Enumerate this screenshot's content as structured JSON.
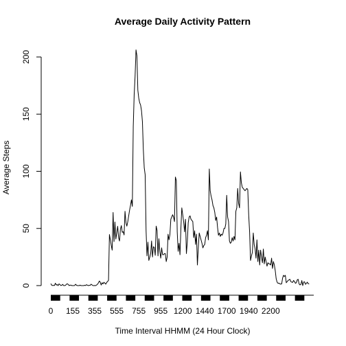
{
  "chart_data": {
    "type": "line",
    "title": "Average Daily Activity Pattern",
    "xlabel": "Time Interval HHMM (24 Hour Clock)",
    "ylabel": "Average Steps",
    "x_tick_labels": [
      "0",
      "155",
      "355",
      "555",
      "755",
      "955",
      "1200",
      "1440",
      "1700",
      "1940",
      "2200"
    ],
    "y_ticks": [
      0,
      50,
      100,
      150,
      200
    ],
    "ylim": [
      0,
      206
    ],
    "x_index_range": [
      0,
      287
    ],
    "legend": "none",
    "grid": false,
    "x_axis_style": "dense ticks rendered as alternating black/white bar",
    "series": [
      {
        "values": [
          1.7,
          0.3,
          0.1,
          0.2,
          0.1,
          2.1,
          0.5,
          0.9,
          0.0,
          1.5,
          0.8,
          0.1,
          0.3,
          1.1,
          0.0,
          0.0,
          0.2,
          1.1,
          1.6,
          1.0,
          0.0,
          0.4,
          0.4,
          0.0,
          0.0,
          0.0,
          0.1,
          1.2,
          0.3,
          0.0,
          0.0,
          0.0,
          0.4,
          0.0,
          0.0,
          0.0,
          0.0,
          0.3,
          0.1,
          0.8,
          0.3,
          0.0,
          0.2,
          0.2,
          1.2,
          0.6,
          0.0,
          0.0,
          0.1,
          0.0,
          0.5,
          1.2,
          2.4,
          4.0,
          2.9,
          0.5,
          2.5,
          1.5,
          2.9,
          2.1,
          1.3,
          2.8,
          3.6,
          4.6,
          44.7,
          40.1,
          35.1,
          31.0,
          64.0,
          38.5,
          55.6,
          40.7,
          46.2,
          51.9,
          42.0,
          39.0,
          49.4,
          52.5,
          46.6,
          47.2,
          44.3,
          65.0,
          55.2,
          52.0,
          55.9,
          60.9,
          66.0,
          70.2,
          75.0,
          69.3,
          139.1,
          167.0,
          183.0,
          206.2,
          201.0,
          171.0,
          164.0,
          160.0,
          158.0,
          153.0,
          143.5,
          119.0,
          103.0,
          97.0,
          48.0,
          26.0,
          38.0,
          22.0,
          24.8,
          28.0,
          39.0,
          25.0,
          34.0,
          33.3,
          26.5,
          52.0,
          48.2,
          26.0,
          41.0,
          30.0,
          24.0,
          33.0,
          27.0,
          27.0,
          28.0,
          28.0,
          21.0,
          25.0,
          45.0,
          40.0,
          44.5,
          58.0,
          60.0,
          62.0,
          60.0,
          56.0,
          95.0,
          92.0,
          47.0,
          30.0,
          37.0,
          27.0,
          50.0,
          68.0,
          62.0,
          56.0,
          47.0,
          58.0,
          28.0,
          38.0,
          55.0,
          60.0,
          61.0,
          58.0,
          57.0,
          56.0,
          42.0,
          48.0,
          36.0,
          45.0,
          18.0,
          33.0,
          46.0,
          43.0,
          40.0,
          37.0,
          33.0,
          35.0,
          36.0,
          42.0,
          44.0,
          48.0,
          40.0,
          102.0,
          83.0,
          78.0,
          75.0,
          70.0,
          68.0,
          64.0,
          57.0,
          60.0,
          51.0,
          44.0,
          46.0,
          43.0,
          45.0,
          44.0,
          46.0,
          50.0,
          50.0,
          54.0,
          79.0,
          60.0,
          56.0,
          39.0,
          37.0,
          38.0,
          42.0,
          39.0,
          43.0,
          40.0,
          65.0,
          68.0,
          85.0,
          72.0,
          68.0,
          99.5,
          90.0,
          86.0,
          85.0,
          84.0,
          83.0,
          84.0,
          85.0,
          84.0,
          62.0,
          47.0,
          22.0,
          26.0,
          29.0,
          46.0,
          36.0,
          32.0,
          24.0,
          40.0,
          21.0,
          31.0,
          18.0,
          31.0,
          25.0,
          20.0,
          32.0,
          19.0,
          25.0,
          21.0,
          17.0,
          20.0,
          19.0,
          19.0,
          18.0,
          24.0,
          15.0,
          21.0,
          18.0,
          13.0,
          6.0,
          3.0,
          2.0,
          2.2,
          1.5,
          1.3,
          1.5,
          6.5,
          9.0,
          8.0,
          9.0,
          2.5,
          3.5,
          4.5,
          5.0,
          5.5,
          3.5,
          3.0,
          2.8,
          4.5,
          3.5,
          2.0,
          2.5,
          5.0,
          5.5,
          1.5,
          0.6,
          1.1,
          4.4,
          0.0,
          3.1,
          3.3,
          1.1,
          2.0,
          3.0,
          1.6,
          1.5
        ]
      }
    ]
  }
}
